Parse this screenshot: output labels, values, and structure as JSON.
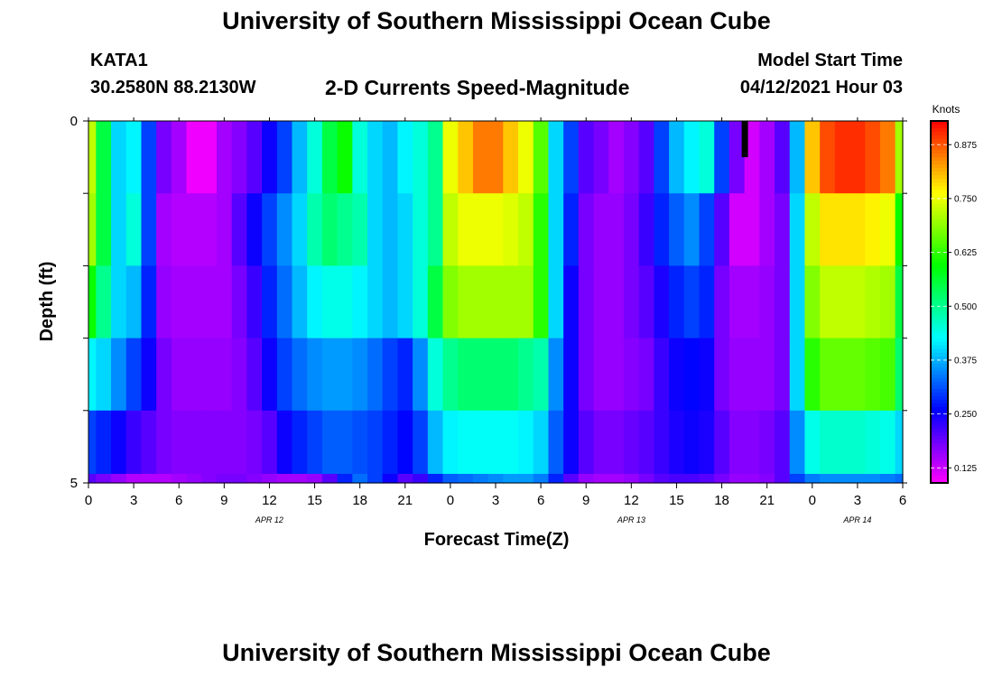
{
  "header": {
    "title": "University of Southern Mississippi Ocean Cube",
    "station": "KATA1",
    "coordinates": "30.2580N  88.2130W",
    "subtitle": "2-D Currents Speed-Magnitude",
    "model_start_label": "Model Start Time",
    "model_start_time": "04/12/2021 Hour 03",
    "footer_title": "University of Southern Mississippi Ocean Cube"
  },
  "chart_data": {
    "type": "heatmap",
    "xlabel": "Forecast Time(Z)",
    "ylabel": "Depth (ft)",
    "x_tick_labels": [
      "0",
      "3",
      "6",
      "9",
      "12",
      "15",
      "18",
      "21",
      "0",
      "3",
      "6",
      "9",
      "12",
      "15",
      "18",
      "21",
      "0",
      "3",
      "6"
    ],
    "x_tick_hours": [
      0,
      3,
      6,
      9,
      12,
      15,
      18,
      21,
      24,
      27,
      30,
      33,
      36,
      39,
      42,
      45,
      48,
      51,
      54
    ],
    "day_labels": [
      {
        "text": "APR  12",
        "hour": 12
      },
      {
        "text": "APR  13",
        "hour": 36
      },
      {
        "text": "APR  14",
        "hour": 51
      }
    ],
    "y_tick_labels": [
      "0",
      "5"
    ],
    "ylim": [
      0,
      5
    ],
    "xlim_hours": [
      0,
      54
    ],
    "colorbar": {
      "unit": "Knots",
      "min": 0.09,
      "max": 0.93,
      "ticks": [
        0.125,
        0.25,
        0.375,
        0.5,
        0.625,
        0.75,
        0.875
      ],
      "tick_labels": [
        "0.125",
        "0.250",
        "0.375",
        "0.500",
        "0.625",
        "0.750",
        "0.875"
      ]
    },
    "depth_bins": [
      0.5,
      1.5,
      2.5,
      3.5,
      4.5,
      5.25
    ],
    "time_hours": [
      0,
      1,
      2,
      3,
      4,
      5,
      6,
      7,
      8,
      9,
      10,
      11,
      12,
      13,
      14,
      15,
      16,
      17,
      18,
      19,
      20,
      21,
      22,
      23,
      24,
      25,
      26,
      27,
      28,
      29,
      30,
      31,
      32,
      33,
      34,
      35,
      36,
      37,
      38,
      39,
      40,
      41,
      42,
      43,
      44,
      45,
      46,
      47,
      48,
      49,
      50,
      51,
      52,
      53,
      54
    ],
    "speed_knots": [
      [
        0.72,
        0.55,
        0.4,
        0.42,
        0.3,
        0.18,
        0.15,
        0.1,
        0.1,
        0.15,
        0.17,
        0.2,
        0.25,
        0.3,
        0.38,
        0.45,
        0.55,
        0.6,
        0.45,
        0.4,
        0.38,
        0.42,
        0.45,
        0.5,
        0.75,
        0.8,
        0.85,
        0.85,
        0.8,
        0.75,
        0.65,
        0.4,
        0.3,
        0.2,
        0.18,
        0.15,
        0.17,
        0.2,
        0.3,
        0.38,
        0.42,
        0.45,
        0.3,
        0.18,
        0.12,
        0.15,
        0.2,
        0.38,
        0.8,
        0.88,
        0.9,
        0.9,
        0.88,
        0.85,
        0.7
      ],
      [
        0.7,
        0.55,
        0.4,
        0.45,
        0.3,
        0.15,
        0.14,
        0.14,
        0.14,
        0.15,
        0.2,
        0.25,
        0.3,
        0.35,
        0.4,
        0.48,
        0.52,
        0.5,
        0.48,
        0.4,
        0.38,
        0.4,
        0.45,
        0.5,
        0.72,
        0.75,
        0.75,
        0.75,
        0.74,
        0.72,
        0.62,
        0.4,
        0.28,
        0.18,
        0.16,
        0.16,
        0.18,
        0.22,
        0.28,
        0.32,
        0.35,
        0.3,
        0.2,
        0.12,
        0.12,
        0.15,
        0.18,
        0.4,
        0.72,
        0.78,
        0.78,
        0.78,
        0.77,
        0.75,
        0.6
      ],
      [
        0.6,
        0.5,
        0.4,
        0.38,
        0.28,
        0.16,
        0.15,
        0.15,
        0.15,
        0.15,
        0.18,
        0.22,
        0.28,
        0.33,
        0.38,
        0.42,
        0.44,
        0.44,
        0.42,
        0.4,
        0.38,
        0.4,
        0.45,
        0.55,
        0.68,
        0.7,
        0.7,
        0.7,
        0.7,
        0.7,
        0.62,
        0.4,
        0.25,
        0.18,
        0.16,
        0.16,
        0.18,
        0.2,
        0.24,
        0.28,
        0.3,
        0.28,
        0.18,
        0.15,
        0.15,
        0.16,
        0.18,
        0.4,
        0.68,
        0.72,
        0.72,
        0.72,
        0.71,
        0.7,
        0.55
      ],
      [
        0.42,
        0.4,
        0.35,
        0.3,
        0.25,
        0.18,
        0.16,
        0.16,
        0.16,
        0.16,
        0.17,
        0.2,
        0.25,
        0.3,
        0.33,
        0.35,
        0.36,
        0.36,
        0.35,
        0.33,
        0.3,
        0.28,
        0.35,
        0.45,
        0.5,
        0.52,
        0.52,
        0.52,
        0.52,
        0.5,
        0.48,
        0.35,
        0.25,
        0.18,
        0.16,
        0.16,
        0.17,
        0.18,
        0.22,
        0.25,
        0.26,
        0.25,
        0.18,
        0.16,
        0.16,
        0.16,
        0.18,
        0.4,
        0.62,
        0.66,
        0.66,
        0.66,
        0.65,
        0.64,
        0.52
      ],
      [
        0.3,
        0.28,
        0.25,
        0.22,
        0.2,
        0.18,
        0.17,
        0.17,
        0.17,
        0.17,
        0.17,
        0.18,
        0.2,
        0.25,
        0.28,
        0.3,
        0.32,
        0.32,
        0.31,
        0.3,
        0.28,
        0.26,
        0.3,
        0.38,
        0.42,
        0.43,
        0.43,
        0.43,
        0.43,
        0.42,
        0.4,
        0.32,
        0.25,
        0.2,
        0.18,
        0.18,
        0.19,
        0.2,
        0.22,
        0.24,
        0.25,
        0.24,
        0.2,
        0.17,
        0.17,
        0.18,
        0.2,
        0.35,
        0.44,
        0.46,
        0.46,
        0.46,
        0.45,
        0.44,
        0.4
      ],
      [
        0.2,
        0.18,
        0.16,
        0.14,
        0.14,
        0.14,
        0.15,
        0.16,
        0.17,
        0.18,
        0.18,
        0.17,
        0.16,
        0.15,
        0.15,
        0.16,
        0.2,
        0.28,
        0.33,
        0.3,
        0.25,
        0.2,
        0.22,
        0.28,
        0.32,
        0.33,
        0.34,
        0.35,
        0.36,
        0.36,
        0.34,
        0.28,
        0.2,
        0.16,
        0.15,
        0.15,
        0.16,
        0.18,
        0.2,
        0.21,
        0.21,
        0.2,
        0.18,
        0.16,
        0.16,
        0.17,
        0.2,
        0.3,
        0.34,
        0.35,
        0.35,
        0.35,
        0.35,
        0.34,
        0.33
      ]
    ],
    "marker": {
      "hour": 43.5,
      "depth_range": [
        0,
        0.5
      ]
    }
  }
}
